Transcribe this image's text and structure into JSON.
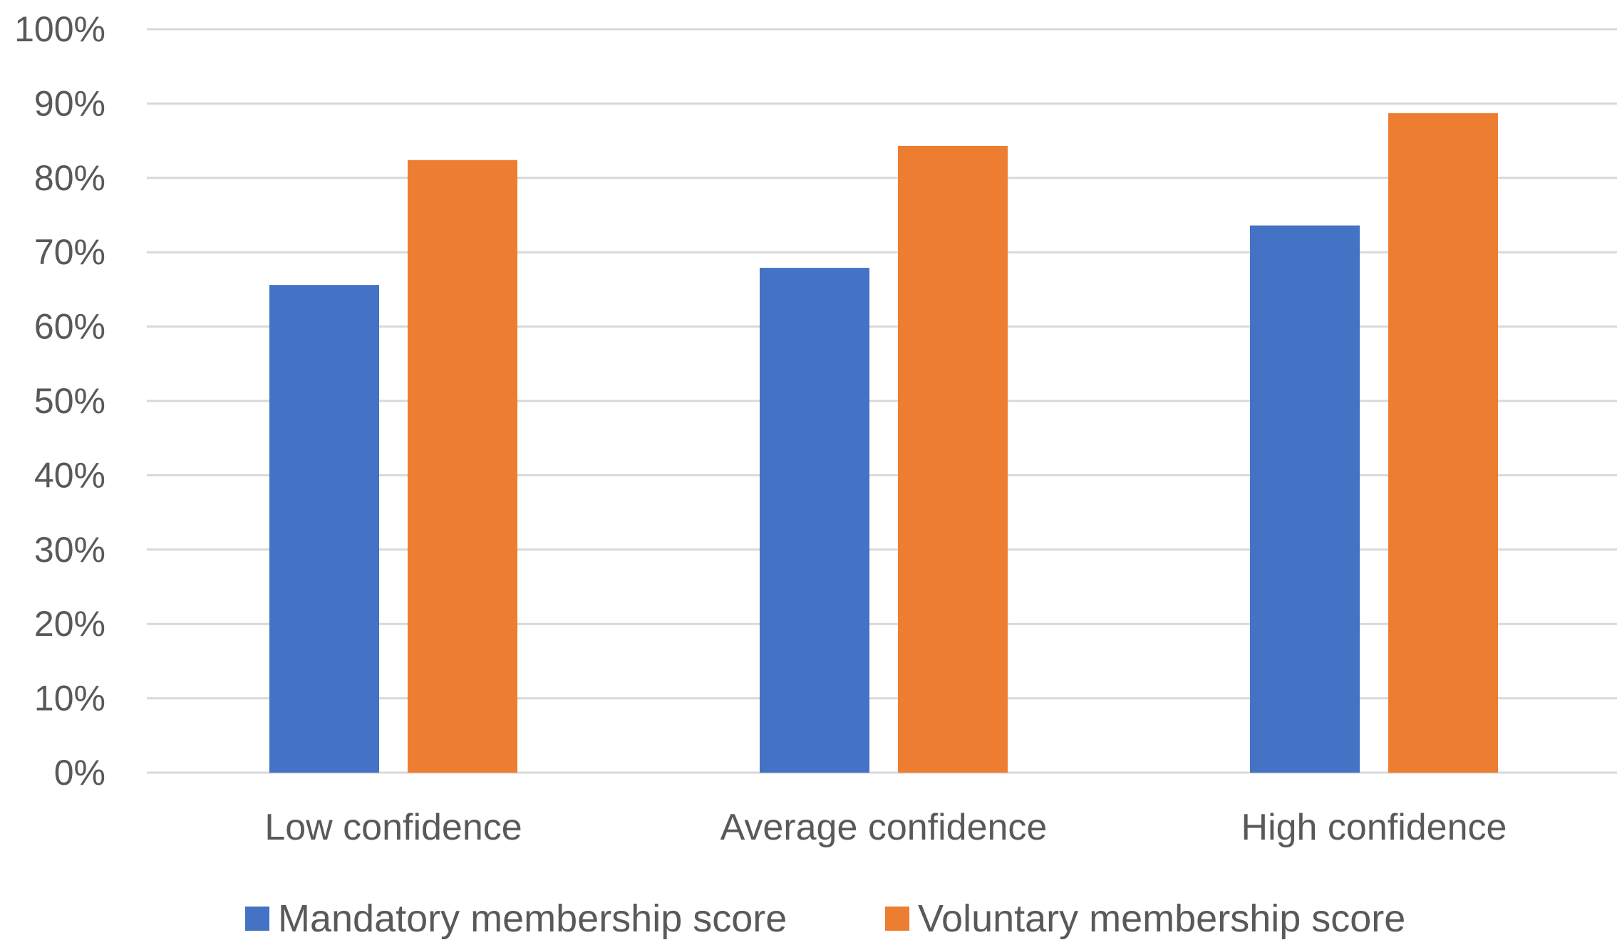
{
  "chart_data": {
    "type": "bar",
    "title": "",
    "xlabel": "",
    "ylabel": "",
    "categories": [
      "Low confidence",
      "Average confidence",
      "High confidence"
    ],
    "series": [
      {
        "name": "Mandatory membership score",
        "color": "#4472C4",
        "values": [
          0.656,
          0.679,
          0.736
        ]
      },
      {
        "name": "Voluntary membership score",
        "color": "#ED7D31",
        "values": [
          0.824,
          0.843,
          0.887
        ]
      }
    ],
    "ylim": [
      0,
      1
    ],
    "yticks": [
      {
        "value": 1.0,
        "label": "100%"
      },
      {
        "value": 0.9,
        "label": "90%"
      },
      {
        "value": 0.8,
        "label": "80%"
      },
      {
        "value": 0.7,
        "label": "70%"
      },
      {
        "value": 0.6,
        "label": "60%"
      },
      {
        "value": 0.5,
        "label": "50%"
      },
      {
        "value": 0.4,
        "label": "40%"
      },
      {
        "value": 0.3,
        "label": "30%"
      },
      {
        "value": 0.2,
        "label": "20%"
      },
      {
        "value": 0.1,
        "label": "10%"
      },
      {
        "value": 0.0,
        "label": "0%"
      }
    ],
    "grid": true,
    "legend_position": "bottom"
  }
}
